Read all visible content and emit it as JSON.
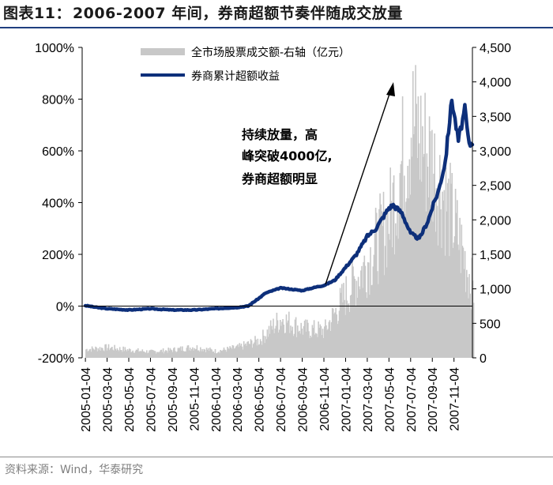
{
  "header": {
    "prefix": "图表11：",
    "title": "2006-2007 年间，券商超额节奏伴随成交放量"
  },
  "source": "资料来源：Wind，华泰研究",
  "colors": {
    "line": "#0d2f7a",
    "bars": "#c8c8c8",
    "title_rule": "#1f3f7f"
  },
  "chart_data": {
    "type": "bar+line",
    "title": "2006-2007 年间，券商超额节奏伴随成交放量",
    "x_tick_labels": [
      "2005-01-04",
      "2005-03-04",
      "2005-05-04",
      "2005-07-04",
      "2005-09-04",
      "2005-11-04",
      "2006-01-04",
      "2006-03-04",
      "2006-05-04",
      "2006-07-04",
      "2006-09-04",
      "2006-11-04",
      "2007-01-04",
      "2007-03-04",
      "2007-05-04",
      "2007-07-04",
      "2007-09-04",
      "2007-11-04"
    ],
    "y_left": {
      "ticks": [
        "-200%",
        "0%",
        "200%",
        "400%",
        "600%",
        "800%",
        "1000%"
      ],
      "range": [
        -200,
        1000
      ],
      "unit": "%"
    },
    "y_right": {
      "ticks": [
        "0",
        "500",
        "1,000",
        "1,500",
        "2,000",
        "2,500",
        "3,000",
        "3,500",
        "4,000",
        "4,500"
      ],
      "range": [
        0,
        4500
      ],
      "unit": "亿元"
    },
    "legend": [
      "全市场股票成交额-右轴（亿元）",
      "券商累计超额收益"
    ],
    "annotation": [
      "持续放量，高",
      "峰突破4000亿,",
      "券商超额明显"
    ],
    "series": [
      {
        "name": "全市场股票成交额-右轴（亿元）",
        "type": "bar",
        "axis": "right",
        "time": [
          0,
          1,
          2,
          3,
          4,
          5,
          6,
          7,
          8,
          9,
          10,
          11,
          12,
          13,
          14,
          15,
          16,
          17,
          17.9
        ],
        "values": [
          140,
          170,
          130,
          100,
          130,
          180,
          110,
          170,
          290,
          650,
          480,
          450,
          1050,
          1600,
          2300,
          3900,
          3200,
          2200,
          1100
        ]
      },
      {
        "name": "券商累计超额收益",
        "type": "line",
        "axis": "left",
        "time": [
          0,
          0.5,
          1,
          2,
          3,
          4,
          5,
          6,
          7,
          7.5,
          8,
          8.3,
          9,
          10,
          10.7,
          11,
          11.5,
          12,
          12.5,
          13,
          13.4,
          14,
          14.2,
          14.6,
          15,
          15.4,
          15.8,
          16,
          16.3,
          16.6,
          16.9,
          17.2,
          17.5,
          17.7,
          17.9
        ],
        "values": [
          2,
          -5,
          -10,
          -15,
          -10,
          -15,
          -15,
          -10,
          -5,
          0,
          30,
          50,
          70,
          60,
          75,
          80,
          100,
          150,
          200,
          270,
          300,
          380,
          390,
          360,
          280,
          260,
          330,
          380,
          450,
          560,
          800,
          640,
          760,
          620,
          640
        ]
      }
    ]
  }
}
